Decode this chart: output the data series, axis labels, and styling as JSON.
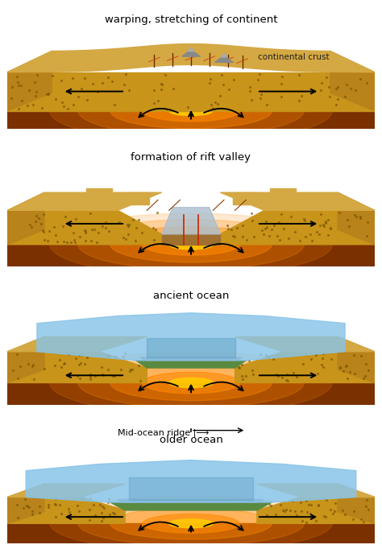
{
  "bg_color": "#ffffff",
  "sand_top": "#D4A843",
  "sand_front": "#C8941A",
  "sand_side": "#B8831A",
  "mantle_color": "#7B3000",
  "lava_hot": "#FF8800",
  "lava_center": "#FFCC00",
  "ocean_color": "#88C4E8",
  "ocean_dark": "#5599BB",
  "green_crust": "#5A8A40",
  "gray_rock": "#9090A0",
  "labels": [
    "warping, stretching of continent",
    "formation of rift valley",
    "ancient ocean",
    "older ocean"
  ],
  "sublabel1": "continental crust",
  "midlabel": "Mid-ocean ridge |⟶"
}
